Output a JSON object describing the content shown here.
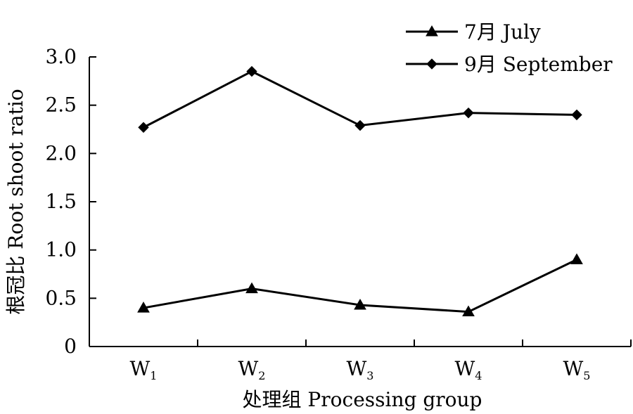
{
  "chart_data": {
    "type": "line",
    "xlabel": "处理组 Processing group",
    "ylabel": "根冠比 Root shoot ratio",
    "categories": [
      {
        "base": "W",
        "sub": "1"
      },
      {
        "base": "W",
        "sub": "2"
      },
      {
        "base": "W",
        "sub": "3"
      },
      {
        "base": "W",
        "sub": "4"
      },
      {
        "base": "W",
        "sub": "5"
      }
    ],
    "ylim": [
      0,
      3.0
    ],
    "yticks": [
      {
        "value": 0,
        "label": "0"
      },
      {
        "value": 0.5,
        "label": "0.5"
      },
      {
        "value": 1.0,
        "label": "1.0"
      },
      {
        "value": 1.5,
        "label": "1.5"
      },
      {
        "value": 2.0,
        "label": "2.0"
      },
      {
        "value": 2.5,
        "label": "2.5"
      },
      {
        "value": 3.0,
        "label": "3.0"
      }
    ],
    "grid": false,
    "legend_position": "top-right",
    "series": [
      {
        "name": "7月 July",
        "marker": "triangle",
        "color": "#000000",
        "values": [
          0.4,
          0.6,
          0.43,
          0.36,
          0.9
        ]
      },
      {
        "name": "9月 September",
        "marker": "diamond",
        "color": "#000000",
        "values": [
          2.27,
          2.85,
          2.29,
          2.42,
          2.4
        ]
      }
    ]
  }
}
